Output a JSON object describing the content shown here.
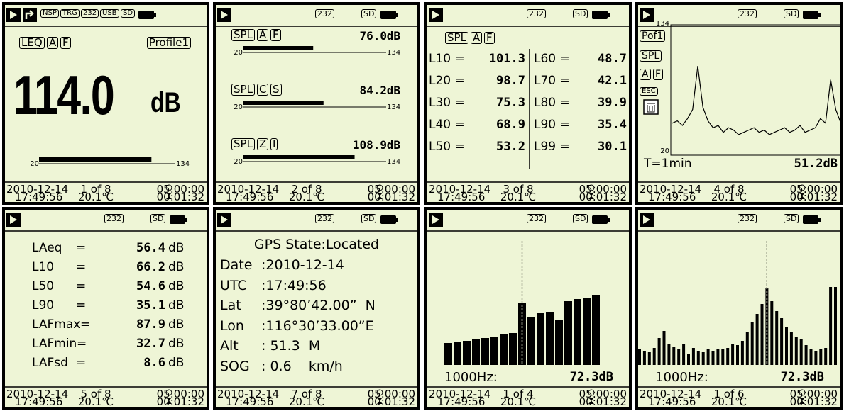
{
  "screens": [
    {
      "kind": "level",
      "status": [
        "NSP",
        "TRG",
        "232",
        "USB",
        "SD"
      ],
      "tags": [
        "LEQ",
        "A",
        "F"
      ],
      "profile": "Profile1",
      "level": {
        "value": 114.0,
        "label": "114.0"
      },
      "unit": "dB",
      "scale": [
        20,
        134
      ],
      "footer": {
        "date": "2010-12-14",
        "time": "17:49:56",
        "page": "1 of 8",
        "temp": "20.1℃",
        "clock": "05:00:00",
        "timer": "00:01:32"
      }
    },
    {
      "kind": "multi",
      "status": [
        "232",
        "SD"
      ],
      "rows": [
        {
          "tags": [
            "SPL",
            "A",
            "F"
          ],
          "level": {
            "value": 76.0,
            "label": "76.0"
          },
          "unit": "dB",
          "scale": [
            20,
            134
          ]
        },
        {
          "tags": [
            "SPL",
            "C",
            "S"
          ],
          "level": {
            "value": 84.2,
            "label": "84.2"
          },
          "unit": "dB",
          "scale": [
            20,
            134
          ]
        },
        {
          "tags": [
            "SPL",
            "Z",
            "I"
          ],
          "level": {
            "value": 108.9,
            "label": "108.9"
          },
          "unit": "dB",
          "scale": [
            20,
            134
          ]
        }
      ],
      "footer": {
        "date": "2010-12-14",
        "time": "17:49:56",
        "page": "2 of 8",
        "temp": "20.1℃",
        "clock": "05:00:00",
        "timer": "00:01:32"
      }
    },
    {
      "kind": "stats",
      "status": [
        "232",
        "SD"
      ],
      "tags": [
        "SPL",
        "A",
        "F"
      ],
      "left": [
        {
          "name": "L10 =",
          "value": "101.3"
        },
        {
          "name": "L20 =",
          "value": "98.7"
        },
        {
          "name": "L30 =",
          "value": "75.3"
        },
        {
          "name": "L40 =",
          "value": "68.9"
        },
        {
          "name": "L50 =",
          "value": "53.2"
        }
      ],
      "right": [
        {
          "name": "L60 =",
          "value": "48.7"
        },
        {
          "name": "L70 =",
          "value": "42.1"
        },
        {
          "name": "L80 =",
          "value": "39.9"
        },
        {
          "name": "L90 =",
          "value": "35.4"
        },
        {
          "name": "L99 =",
          "value": "30.1"
        }
      ],
      "footer": {
        "date": "2010-12-14",
        "time": "17:49:56",
        "page": "3 of 8",
        "temp": "20.1℃",
        "clock": "05:00:00",
        "timer": "00:01:32"
      }
    },
    {
      "kind": "history",
      "status": [
        "232",
        "SD"
      ],
      "side": [
        "Pof1",
        "SPL",
        "A",
        "F",
        "ESC"
      ],
      "ylim": [
        20,
        134
      ],
      "values": [
        48,
        50,
        46,
        52,
        60,
        98,
        62,
        50,
        44,
        46,
        40,
        44,
        42,
        38,
        40,
        42,
        44,
        40,
        42,
        38,
        40,
        42,
        44,
        40,
        42,
        46,
        40,
        42,
        44,
        52,
        48,
        86,
        60,
        48
      ],
      "period": "T=1min",
      "level": "51.2dB",
      "footer": {
        "date": "2010-12-14",
        "time": "17:49:56",
        "page": "4 of 8",
        "temp": "20.1℃",
        "clock": "05:00:00",
        "timer": "00:01:32"
      }
    },
    {
      "kind": "summary",
      "status": [
        "232",
        "SD"
      ],
      "rows": [
        {
          "name": "LAeq",
          "eq": "=",
          "value": "56.4",
          "unit": "dB"
        },
        {
          "name": "L10",
          "eq": "=",
          "value": "66.2",
          "unit": "dB"
        },
        {
          "name": "L50",
          "eq": "=",
          "value": "54.6",
          "unit": "dB"
        },
        {
          "name": "L90",
          "eq": "=",
          "value": "35.1",
          "unit": "dB"
        },
        {
          "name": "LAFmax",
          "eq": "=",
          "value": "87.9",
          "unit": "dB"
        },
        {
          "name": "LAFmin",
          "eq": "=",
          "value": "32.7",
          "unit": "dB"
        },
        {
          "name": "LAFsd",
          "eq": "=",
          "value": "8.6",
          "unit": "dB"
        }
      ],
      "footer": {
        "date": "2010-12-14",
        "time": "17:49:56",
        "page": "5 of 8",
        "temp": "20.1℃",
        "clock": "05:00:00",
        "timer": "00:01:32"
      }
    },
    {
      "kind": "gps",
      "status": [
        "232",
        "SD"
      ],
      "title": "GPS State:Located",
      "rows": [
        {
          "key": "Date",
          "value": ":2010-12-14"
        },
        {
          "key": "UTC",
          "value": ":17:49:56"
        },
        {
          "key": "Lat",
          "value": ":39°80’42.00”  N"
        },
        {
          "key": "Lon",
          "value": ":116°30’33.00”E"
        },
        {
          "key": "Alt",
          "value": ": 51.3  M"
        },
        {
          "key": "SOG",
          "value": ": 0.6    km/h"
        }
      ],
      "footer": {
        "date": "2010-12-14",
        "time": "17:49:56",
        "page": "7 of 8",
        "temp": "20.1℃",
        "clock": "05:00:00",
        "timer": "00:01:32"
      }
    },
    {
      "kind": "spectrum",
      "status": [
        "232",
        "SD"
      ],
      "bars": [
        31,
        32,
        34,
        36,
        38,
        40,
        43,
        45,
        88,
        67,
        73,
        75,
        63,
        90,
        93,
        95,
        99
      ],
      "marker": 8,
      "freq": "1000Hz:",
      "level": "72.3dB",
      "footer": {
        "date": "2010-12-14",
        "time": "17:49:56",
        "page": "1 of 4",
        "temp": "20.1℃",
        "clock": "05:00:00",
        "timer": "00:01:32"
      }
    },
    {
      "kind": "spectrum",
      "status": [
        "232",
        "SD"
      ],
      "bars": [
        22,
        20,
        18,
        24,
        38,
        48,
        30,
        26,
        22,
        30,
        16,
        24,
        20,
        18,
        22,
        20,
        22,
        22,
        24,
        30,
        28,
        34,
        46,
        60,
        72,
        86,
        108,
        90,
        76,
        66,
        54,
        46,
        40,
        36,
        28,
        22,
        20,
        22,
        24,
        110,
        110
      ],
      "marker": 26,
      "freq": "1000Hz:",
      "level": "72.3dB",
      "footer": {
        "date": "2010-12-14",
        "time": "17:49:56",
        "page": "1 of 6",
        "temp": "20.1℃",
        "clock": "05:00:00",
        "timer": "00:01:32"
      }
    }
  ]
}
